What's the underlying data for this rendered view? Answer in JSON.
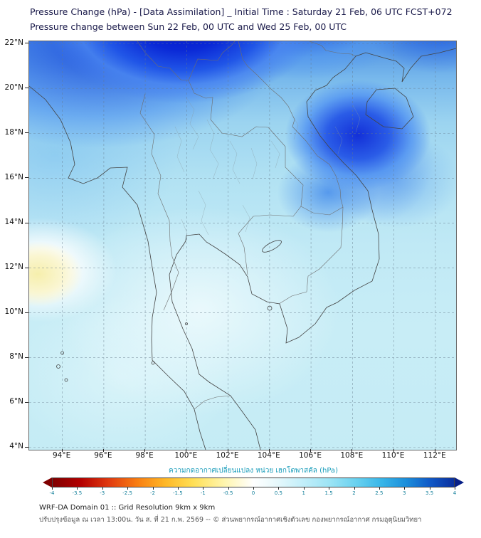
{
  "header": {
    "title_line1": "Pressure Change (hPa) - [Data Assimilation] _ Initial Time : Saturday 21 Feb, 06 UTC FCST+072",
    "title_line2": "Pressure change between Sun 22 Feb, 00 UTC and Wed 25 Feb, 00 UTC"
  },
  "map": {
    "y_ticks": [
      "22°N",
      "20°N",
      "18°N",
      "16°N",
      "14°N",
      "12°N",
      "10°N",
      "8°N",
      "6°N",
      "4°N"
    ],
    "x_ticks": [
      "94°E",
      "96°E",
      "98°E",
      "100°E",
      "102°E",
      "104°E",
      "106°E",
      "108°E",
      "110°E",
      "112°E"
    ]
  },
  "colorbar": {
    "label": "ความกดอากาศเปลี่ยนแปลง หน่วย เฮกโตพาสคัล (hPa)",
    "ticks": [
      "-4",
      "-3.5",
      "-3",
      "-2.5",
      "-2",
      "-1.5",
      "-1",
      "-0.5",
      "0",
      "0.5",
      "1",
      "1.5",
      "2",
      "2.5",
      "3",
      "3.5",
      "4"
    ],
    "min": -4,
    "max": 4,
    "stop_colors": [
      "#7f0000",
      "#b30000",
      "#e03a10",
      "#f87d12",
      "#ffb726",
      "#ffdf55",
      "#fff6b0",
      "#ffffff",
      "#e6f8fb",
      "#c4effa",
      "#9ce4f5",
      "#66d0ef",
      "#38b5e8",
      "#1c8fdb",
      "#1059c7",
      "#0a2f9e",
      "#071f87"
    ]
  },
  "footer": {
    "line1": "WRF-DA Domain 01 :: Grid Resolution 9km x 9km",
    "line2": "ปรับปรุงข้อมูล ณ เวลา 13:00น. วัน ส. ที่ 21 ก.พ. 2569 -- © ส่วนพยากรณ์อากาศเชิงตัวเลข กองพยากรณ์อากาศ กรมอุตุนิยมวิทยา"
  },
  "chart_data": {
    "type": "heatmap",
    "title": "Pressure Change (hPa) - [Data Assimilation]",
    "initial_time": "Saturday 21 Feb, 06 UTC",
    "forecast_hour": "FCST+072",
    "valid_period": "Sun 22 Feb, 00 UTC to Wed 25 Feb, 00 UTC",
    "units": "hPa",
    "xlabel": "",
    "ylabel": "",
    "x_ticks_deg_e": [
      94,
      96,
      98,
      100,
      102,
      104,
      106,
      108,
      110,
      112
    ],
    "y_ticks_deg_n": [
      22,
      20,
      18,
      16,
      14,
      12,
      10,
      8,
      6,
      4
    ],
    "grid": "on",
    "legend_position": "bottom",
    "colorbar_range": [
      -4,
      4
    ],
    "colorbar_step": 0.5,
    "lons_deg_e": [
      94,
      96,
      98,
      100,
      102,
      104,
      106,
      108,
      110,
      112
    ],
    "lats_deg_n": [
      22,
      20,
      18,
      16,
      14,
      12,
      10,
      8,
      6,
      4
    ],
    "values_hpa": [
      [
        2.5,
        3.5,
        4.0,
        4.0,
        3.5,
        3.0,
        3.0,
        3.0,
        2.5,
        2.0
      ],
      [
        2.0,
        3.0,
        4.0,
        4.0,
        3.5,
        2.5,
        2.5,
        3.0,
        2.5,
        2.0
      ],
      [
        1.5,
        2.0,
        2.5,
        3.0,
        3.0,
        2.5,
        3.0,
        3.5,
        2.0,
        1.5
      ],
      [
        1.0,
        1.5,
        1.5,
        2.0,
        2.0,
        2.0,
        2.5,
        2.5,
        2.0,
        1.5
      ],
      [
        0.5,
        1.0,
        1.0,
        1.5,
        1.0,
        1.5,
        1.5,
        1.5,
        1.5,
        1.5
      ],
      [
        -0.5,
        0.5,
        1.0,
        0.5,
        0.5,
        1.0,
        1.0,
        1.5,
        1.0,
        1.0
      ],
      [
        0.5,
        0.5,
        0.5,
        0.5,
        0.5,
        0.5,
        1.0,
        1.0,
        1.0,
        1.0
      ],
      [
        0.5,
        0.5,
        0.5,
        0.5,
        0.5,
        0.5,
        1.0,
        1.0,
        1.0,
        1.0
      ],
      [
        0.5,
        0.5,
        1.0,
        0.5,
        0.5,
        0.5,
        1.0,
        1.0,
        1.0,
        1.0
      ],
      [
        1.0,
        1.0,
        1.0,
        0.5,
        0.5,
        1.0,
        1.0,
        1.0,
        1.0,
        1.0
      ]
    ]
  }
}
